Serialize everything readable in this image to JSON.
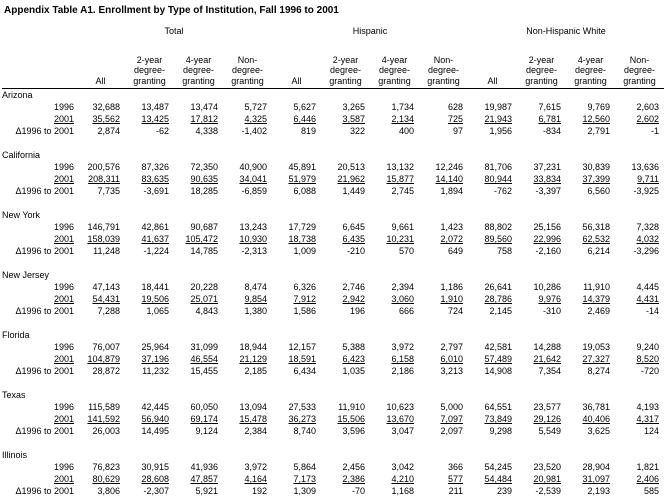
{
  "title": "Appendix Table A1. Enrollment by Type of Institution, Fall 1996 to 2001",
  "table": {
    "groups": [
      {
        "label": "Total"
      },
      {
        "label": "Hispanic"
      },
      {
        "label": "Non-Hispanic White"
      }
    ],
    "columns": [
      "All",
      "2-year\ndegree-\ngranting",
      "4-year\ndegree-\ngranting",
      "Non-degree-\ngranting",
      "All",
      "2-year\ndegree-\ngranting",
      "4-year\ndegree-\ngranting",
      "Non-degree-\ngranting",
      "All",
      "2-year\ndegree-\ngranting",
      "4-year\ndegree-\ngranting",
      "Non-degree-\ngranting"
    ],
    "states": [
      {
        "name": "Arizona",
        "rows": [
          {
            "label": "1996",
            "underline": false,
            "values": [
              "32,688",
              "13,487",
              "13,474",
              "5,727",
              "5,627",
              "3,265",
              "1,734",
              "628",
              "19,987",
              "7,615",
              "9,769",
              "2,603"
            ]
          },
          {
            "label": "2001",
            "underline": true,
            "values": [
              "35,562",
              "13,425",
              "17,812",
              "4,325",
              "6,446",
              "3,587",
              "2,134",
              "725",
              "21,943",
              "6,781",
              "12,560",
              "2,602"
            ]
          },
          {
            "label": "Δ1996 to 2001",
            "underline": false,
            "values": [
              "2,874",
              "-62",
              "4,338",
              "-1,402",
              "819",
              "322",
              "400",
              "97",
              "1,956",
              "-834",
              "2,791",
              "-1"
            ]
          }
        ]
      },
      {
        "name": "California",
        "rows": [
          {
            "label": "1996",
            "underline": false,
            "values": [
              "200,576",
              "87,326",
              "72,350",
              "40,900",
              "45,891",
              "20,513",
              "13,132",
              "12,246",
              "81,706",
              "37,231",
              "30,839",
              "13,636"
            ]
          },
          {
            "label": "2001",
            "underline": true,
            "values": [
              "208,311",
              "83,635",
              "90,635",
              "34,041",
              "51,979",
              "21,962",
              "15,877",
              "14,140",
              "80,944",
              "33,834",
              "37,399",
              "9,711"
            ]
          },
          {
            "label": "Δ1996 to 2001",
            "underline": false,
            "values": [
              "7,735",
              "-3,691",
              "18,285",
              "-6,859",
              "6,088",
              "1,449",
              "2,745",
              "1,894",
              "-762",
              "-3,397",
              "6,560",
              "-3,925"
            ]
          }
        ]
      },
      {
        "name": "New York",
        "rows": [
          {
            "label": "1996",
            "underline": false,
            "values": [
              "146,791",
              "42,861",
              "90,687",
              "13,243",
              "17,729",
              "6,645",
              "9,661",
              "1,423",
              "88,802",
              "25,156",
              "56,318",
              "7,328"
            ]
          },
          {
            "label": "2001",
            "underline": true,
            "values": [
              "158,039",
              "41,637",
              "105,472",
              "10,930",
              "18,738",
              "6,435",
              "10,231",
              "2,072",
              "89,560",
              "22,996",
              "62,532",
              "4,032"
            ]
          },
          {
            "label": "Δ1996 to 2001",
            "underline": false,
            "values": [
              "11,248",
              "-1,224",
              "14,785",
              "-2,313",
              "1,009",
              "-210",
              "570",
              "649",
              "758",
              "-2,160",
              "6,214",
              "-3,296"
            ]
          }
        ]
      },
      {
        "name": "New Jersey",
        "rows": [
          {
            "label": "1996",
            "underline": false,
            "values": [
              "47,143",
              "18,441",
              "20,228",
              "8,474",
              "6,326",
              "2,746",
              "2,394",
              "1,186",
              "26,641",
              "10,286",
              "11,910",
              "4,445"
            ]
          },
          {
            "label": "2001",
            "underline": true,
            "values": [
              "54,431",
              "19,506",
              "25,071",
              "9,854",
              "7,912",
              "2,942",
              "3,060",
              "1,910",
              "28,786",
              "9,976",
              "14,379",
              "4,431"
            ]
          },
          {
            "label": "Δ1996 to 2001",
            "underline": false,
            "values": [
              "7,288",
              "1,065",
              "4,843",
              "1,380",
              "1,586",
              "196",
              "666",
              "724",
              "2,145",
              "-310",
              "2,469",
              "-14"
            ]
          }
        ]
      },
      {
        "name": "Florida",
        "rows": [
          {
            "label": "1996",
            "underline": false,
            "values": [
              "76,007",
              "25,964",
              "31,099",
              "18,944",
              "12,157",
              "5,388",
              "3,972",
              "2,797",
              "42,581",
              "14,288",
              "19,053",
              "9,240"
            ]
          },
          {
            "label": "2001",
            "underline": true,
            "values": [
              "104,879",
              "37,196",
              "46,554",
              "21,129",
              "18,591",
              "6,423",
              "6,158",
              "6,010",
              "57,489",
              "21,642",
              "27,327",
              "8,520"
            ]
          },
          {
            "label": "Δ1996 to 2001",
            "underline": false,
            "values": [
              "28,872",
              "11,232",
              "15,455",
              "2,185",
              "6,434",
              "1,035",
              "2,186",
              "3,213",
              "14,908",
              "7,354",
              "8,274",
              "-720"
            ]
          }
        ]
      },
      {
        "name": "Texas",
        "rows": [
          {
            "label": "1996",
            "underline": false,
            "values": [
              "115,589",
              "42,445",
              "60,050",
              "13,094",
              "27,533",
              "11,910",
              "10,623",
              "5,000",
              "64,551",
              "23,577",
              "36,781",
              "4,193"
            ]
          },
          {
            "label": "2001",
            "underline": true,
            "values": [
              "141,592",
              "56,940",
              "69,174",
              "15,478",
              "36,273",
              "15,506",
              "13,670",
              "7,097",
              "73,849",
              "29,126",
              "40,406",
              "4,317"
            ]
          },
          {
            "label": "Δ1996 to 2001",
            "underline": false,
            "values": [
              "26,003",
              "14,495",
              "9,124",
              "2,384",
              "8,740",
              "3,596",
              "3,047",
              "2,097",
              "9,298",
              "5,549",
              "3,625",
              "124"
            ]
          }
        ]
      },
      {
        "name": "Illinois",
        "rows": [
          {
            "label": "1996",
            "underline": false,
            "values": [
              "76,823",
              "30,915",
              "41,936",
              "3,972",
              "5,864",
              "2,456",
              "3,042",
              "366",
              "54,245",
              "23,520",
              "28,904",
              "1,821"
            ]
          },
          {
            "label": "2001",
            "underline": true,
            "values": [
              "80,629",
              "28,608",
              "47,857",
              "4,164",
              "7,173",
              "2,386",
              "4,210",
              "577",
              "54,484",
              "20,981",
              "31,097",
              "2,406"
            ]
          },
          {
            "label": "Δ1996 to 2001",
            "underline": false,
            "values": [
              "3,806",
              "-2,307",
              "5,921",
              "192",
              "1,309",
              "-70",
              "1,168",
              "211",
              "239",
              "-2,539",
              "2,193",
              "585"
            ]
          }
        ]
      }
    ]
  }
}
